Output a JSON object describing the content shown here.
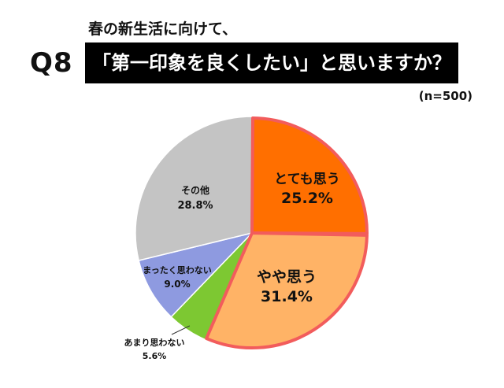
{
  "header": {
    "question_number": "Q8",
    "subtitle": "春の新生活に向けて、",
    "title": "「第一印象を良くしたい」と思いますか？",
    "sample_size": "(n=500)"
  },
  "chart_data": {
    "type": "pie",
    "start_angle_deg": 0,
    "direction": "clockwise",
    "slices": [
      {
        "label": "とても思う",
        "value": 25.2,
        "value_label": "25.2%",
        "color": "#FF6F00",
        "highlight": true
      },
      {
        "label": "やや思う",
        "value": 31.4,
        "value_label": "31.4%",
        "color": "#FFB366",
        "highlight": true
      },
      {
        "label": "あまり思わない",
        "value": 5.6,
        "value_label": "5.6%",
        "color": "#7DC832",
        "highlight": false
      },
      {
        "label": "まったく思わない",
        "value": 9.0,
        "value_label": "9.0%",
        "color": "#8E9AE0",
        "highlight": false
      },
      {
        "label": "その他",
        "value": 28.8,
        "value_label": "28.8%",
        "color": "#C4C4C4",
        "highlight": false
      }
    ],
    "highlight_border_color": "#F25C5C"
  }
}
